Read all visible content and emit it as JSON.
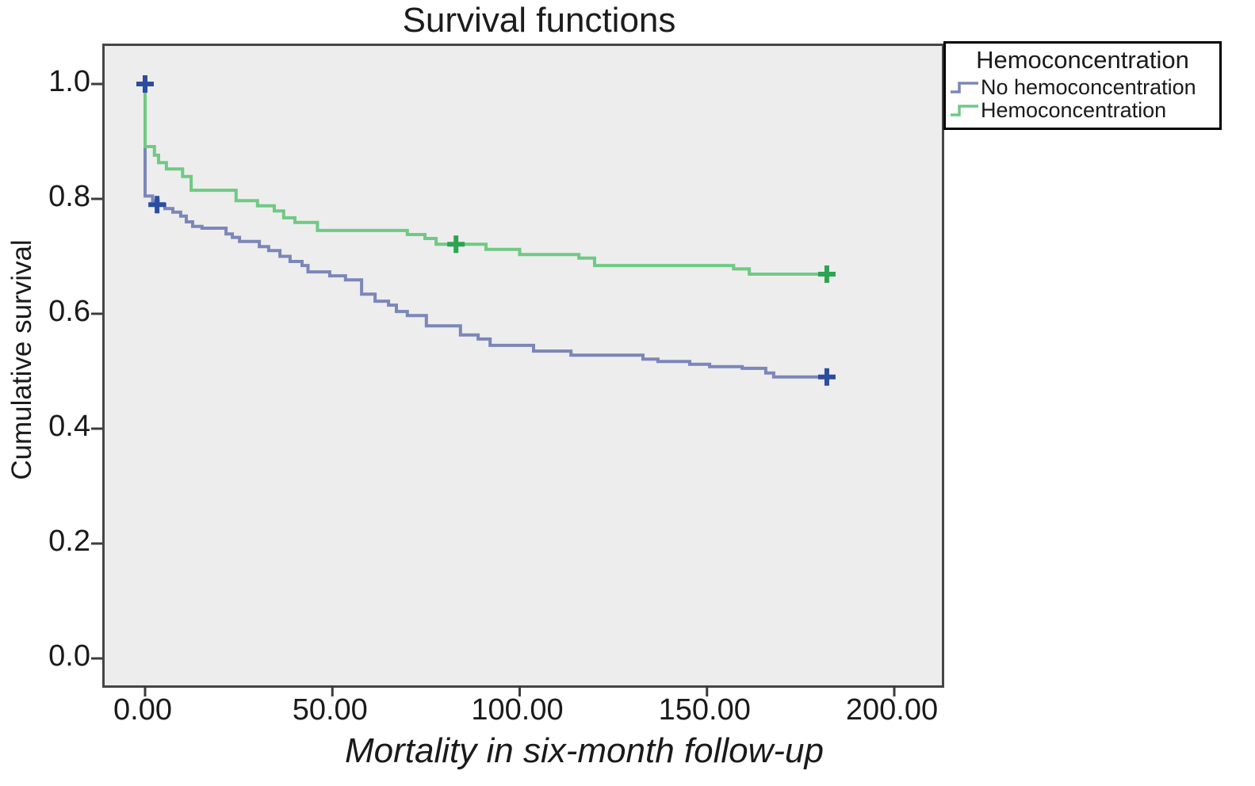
{
  "chart": {
    "title": "Survival functions",
    "xlabel": "Mortality in six-month follow-up",
    "ylabel": "Cumulative survival"
  },
  "legend": {
    "title": "Hemoconcentration",
    "entries": [
      {
        "label": "No hemoconcentration",
        "color": "#7b87b8"
      },
      {
        "label": "Hemoconcentration",
        "color": "#6fca83"
      }
    ]
  },
  "chart_data": {
    "type": "line",
    "subtype": "kaplan-meier-step",
    "title": "Survival functions",
    "xlabel": "Mortality in six-month follow-up",
    "ylabel": "Cumulative survival",
    "xlim": [
      -10.8,
      212.7
    ],
    "ylim": [
      -0.05,
      1.07
    ],
    "grid": false,
    "legend_position": "top-right-outside",
    "plot_bg": "#ededed",
    "frame_color": "#454545",
    "x_ticks": [
      {
        "value": 0,
        "label": "0.00"
      },
      {
        "value": 50,
        "label": "50.00"
      },
      {
        "value": 100,
        "label": "100.00"
      },
      {
        "value": 150,
        "label": "150.00"
      },
      {
        "value": 200,
        "label": "200.00"
      }
    ],
    "y_ticks": [
      {
        "value": 1.0,
        "label": "1.0"
      },
      {
        "value": 0.8,
        "label": "0.8"
      },
      {
        "value": 0.6,
        "label": "0.6"
      },
      {
        "value": 0.4,
        "label": "0.4"
      },
      {
        "value": 0.2,
        "label": "0.2"
      },
      {
        "value": 0.0,
        "label": "0.0"
      }
    ],
    "series": [
      {
        "name": "No hemoconcentration",
        "color": "#7b87b8",
        "marker_color": "#2c4ca0",
        "points": [
          [
            0,
            1.0
          ],
          [
            0,
            0.805
          ],
          [
            2,
            0.797
          ],
          [
            3.5,
            0.79
          ],
          [
            5.3,
            0.783
          ],
          [
            7.4,
            0.777
          ],
          [
            9.5,
            0.77
          ],
          [
            11,
            0.76
          ],
          [
            12.7,
            0.752
          ],
          [
            15.2,
            0.749
          ],
          [
            21.6,
            0.739
          ],
          [
            23.3,
            0.733
          ],
          [
            25.2,
            0.726
          ],
          [
            30.5,
            0.717
          ],
          [
            33,
            0.71
          ],
          [
            36,
            0.7
          ],
          [
            38.7,
            0.691
          ],
          [
            41.9,
            0.684
          ],
          [
            43.5,
            0.673
          ],
          [
            49.3,
            0.666
          ],
          [
            53.5,
            0.659
          ],
          [
            57.8,
            0.634
          ],
          [
            61.4,
            0.622
          ],
          [
            65,
            0.615
          ],
          [
            67.1,
            0.604
          ],
          [
            70,
            0.597
          ],
          [
            75.1,
            0.579
          ],
          [
            84.2,
            0.563
          ],
          [
            88.9,
            0.556
          ],
          [
            92.1,
            0.545
          ],
          [
            103.7,
            0.535
          ],
          [
            113.7,
            0.528
          ],
          [
            132.9,
            0.521
          ],
          [
            136.9,
            0.517
          ],
          [
            145.4,
            0.512
          ],
          [
            150.7,
            0.508
          ],
          [
            159.4,
            0.505
          ],
          [
            165.7,
            0.497
          ],
          [
            167.8,
            0.49
          ],
          [
            182,
            0.49
          ]
        ],
        "censor_markers": [
          [
            0,
            1.0
          ],
          [
            3.2,
            0.79
          ],
          [
            182,
            0.49
          ]
        ]
      },
      {
        "name": "Hemoconcentration",
        "color": "#6fca83",
        "marker_color": "#2fa352",
        "points": [
          [
            0,
            1.0
          ],
          [
            0,
            0.891
          ],
          [
            2.5,
            0.876
          ],
          [
            3.6,
            0.863
          ],
          [
            5.7,
            0.852
          ],
          [
            10,
            0.839
          ],
          [
            12.3,
            0.815
          ],
          [
            24.3,
            0.797
          ],
          [
            30,
            0.788
          ],
          [
            34.5,
            0.779
          ],
          [
            37,
            0.767
          ],
          [
            40,
            0.759
          ],
          [
            46,
            0.745
          ],
          [
            70,
            0.738
          ],
          [
            74.7,
            0.731
          ],
          [
            77.7,
            0.721
          ],
          [
            91,
            0.712
          ],
          [
            100,
            0.703
          ],
          [
            115.8,
            0.697
          ],
          [
            120,
            0.684
          ],
          [
            157.1,
            0.678
          ],
          [
            161.3,
            0.669
          ],
          [
            182,
            0.669
          ]
        ],
        "censor_markers": [
          [
            83,
            0.721
          ],
          [
            182,
            0.669
          ]
        ]
      }
    ]
  }
}
